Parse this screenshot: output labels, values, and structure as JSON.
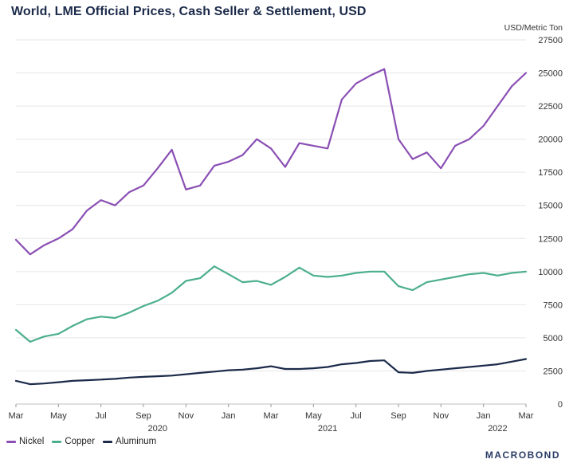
{
  "chart_data": {
    "type": "line",
    "title": "World, LME Official Prices, Cash Seller & Settlement, USD",
    "ylabel": "USD/Metric Ton",
    "ylim": [
      0,
      27500
    ],
    "yticks": [
      "0",
      "2500",
      "5000",
      "7500",
      "10000",
      "12500",
      "15000",
      "17500",
      "20000",
      "22500",
      "25000",
      "27500"
    ],
    "xlim": [
      "2019-03",
      "2022-03"
    ],
    "xticks": [
      "Mar",
      "May",
      "Jul",
      "Sep",
      "Nov",
      "Jan",
      "Mar",
      "May",
      "Jul",
      "Sep",
      "Nov",
      "Jan",
      "Mar"
    ],
    "year_labels": [
      {
        "text": "2020",
        "at": "2020-01"
      },
      {
        "text": "2021",
        "at": "2021-01"
      },
      {
        "text": "2022",
        "at": "2022-01"
      }
    ],
    "grid": "horizontal",
    "legend_position": "bottom-left",
    "x": [
      "2019-03",
      "2019-04",
      "2019-05",
      "2019-06",
      "2019-07",
      "2019-08",
      "2019-09",
      "2019-10",
      "2019-11",
      "2019-12",
      "2020-01",
      "2020-02",
      "2020-03",
      "2020-04",
      "2020-05",
      "2020-06",
      "2020-07",
      "2020-08",
      "2020-09",
      "2020-10",
      "2020-11",
      "2020-12",
      "2021-01",
      "2021-02",
      "2021-03",
      "2021-04",
      "2021-05",
      "2021-06",
      "2021-07",
      "2021-08",
      "2021-09",
      "2021-10",
      "2021-11",
      "2021-12",
      "2022-01",
      "2022-02",
      "2022-03"
    ],
    "series": [
      {
        "name": "Nickel",
        "color": "#8a4fb4",
        "values": [
          12400,
          11300,
          12000,
          12500,
          13200,
          14600,
          15400,
          15000,
          16000,
          16500,
          17800,
          19200,
          16200,
          16500,
          18000,
          18300,
          18800,
          20000,
          19300,
          17900,
          19700,
          19500,
          19300,
          23000,
          24200,
          24800,
          25300,
          20000,
          18500,
          19000,
          17800,
          19500,
          20000,
          21000,
          22500,
          24000,
          25000
        ]
      },
      {
        "name": "Copper",
        "color": "#4caf8c",
        "values": [
          5600,
          4700,
          5100,
          5300,
          5900,
          6400,
          6600,
          6500,
          6900,
          7400,
          7800,
          8400,
          9300,
          9500,
          10400,
          9800,
          9200,
          9300,
          9000,
          9600,
          10300,
          9700,
          9600,
          9700,
          9900,
          10000,
          10000,
          8900,
          8600,
          9200,
          9400,
          9600,
          9800,
          9900,
          9700,
          9900,
          10000
        ]
      },
      {
        "name": "Aluminum",
        "color": "#1b2a4a",
        "values": [
          1750,
          1500,
          1550,
          1650,
          1750,
          1800,
          1850,
          1900,
          2000,
          2050,
          2100,
          2150,
          2250,
          2350,
          2450,
          2550,
          2600,
          2700,
          2850,
          2650,
          2650,
          2700,
          2800,
          3000,
          3100,
          3250,
          3300,
          2400,
          2350,
          2500,
          2600,
          2700,
          2800,
          2900,
          3000,
          3200,
          3400
        ]
      }
    ]
  },
  "brand": {
    "label": "MACROBOND"
  }
}
